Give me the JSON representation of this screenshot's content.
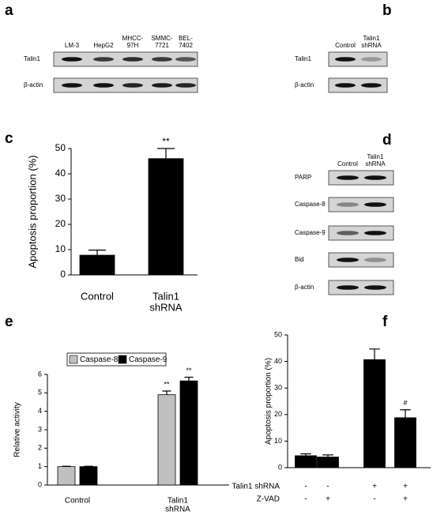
{
  "blots": [
    {
      "panel_label": "a",
      "columns": [
        [
          "LM-3"
        ],
        [
          "HepG2"
        ],
        [
          "MHCC-",
          "97H"
        ],
        [
          "SMMC-",
          "7721"
        ],
        [
          "BEL-",
          "7402"
        ]
      ],
      "rows": [
        "Talin1",
        "β-actin"
      ]
    },
    {
      "panel_label": "b",
      "columns": [
        [
          "Control"
        ],
        [
          "Talin1",
          "shRNA"
        ]
      ],
      "rows": [
        "Talin1",
        "β-actin"
      ]
    },
    {
      "panel_label": "d",
      "columns": [
        [
          "Control"
        ],
        [
          "Talin1",
          "shRNA"
        ]
      ],
      "rows": [
        "PARP",
        "Caspase-8",
        "Caspase-9",
        "Bid",
        "β-actin"
      ]
    }
  ],
  "chart_data": [
    {
      "type": "bar",
      "panel_label": "c",
      "ylabel": "Apoptosis proportion (%)",
      "categories": [
        [
          "Control"
        ],
        [
          "Talin1",
          "shRNA"
        ]
      ],
      "values": [
        7.8,
        46
      ],
      "errors": [
        2,
        4
      ],
      "annotations": [
        null,
        "**"
      ],
      "color": "#000000",
      "ylim": [
        0,
        50
      ],
      "yticks": [
        0,
        10,
        20,
        30,
        40,
        50
      ]
    },
    {
      "type": "bar",
      "panel_label": "e",
      "ylabel": "Relative activity",
      "categories": [
        [
          "Control"
        ],
        [
          "Talin1",
          "shRNA"
        ]
      ],
      "series": [
        {
          "name": "Caspase-8",
          "color": "#c0c0c0",
          "values": [
            1,
            4.9
          ],
          "errors": [
            0.02,
            0.2
          ],
          "annotations": [
            null,
            "**"
          ]
        },
        {
          "name": "Caspase-9",
          "color": "#000000",
          "values": [
            1,
            5.65
          ],
          "errors": [
            0.02,
            0.2
          ],
          "annotations": [
            null,
            "**"
          ]
        }
      ],
      "legend": "top-left",
      "ylim": [
        0,
        6
      ],
      "yticks": [
        0,
        1,
        2,
        3,
        4,
        5,
        6
      ]
    },
    {
      "type": "bar",
      "panel_label": "f",
      "ylabel": "Apoptosis proportion (%)",
      "values": [
        4.5,
        4,
        40.7,
        18.8
      ],
      "errors": [
        0.7,
        0.8,
        4,
        3
      ],
      "annotations": [
        null,
        null,
        null,
        "#"
      ],
      "color": "#000000",
      "conditions": [
        {
          "name": "Talin1 shRNA",
          "signs": [
            "-",
            "-",
            "+",
            "+"
          ]
        },
        {
          "name": "Z-VAD",
          "signs": [
            "-",
            "+",
            "-",
            "+"
          ]
        }
      ],
      "ylim": [
        0,
        50
      ],
      "yticks": [
        0,
        10,
        20,
        30,
        40,
        50
      ]
    }
  ]
}
